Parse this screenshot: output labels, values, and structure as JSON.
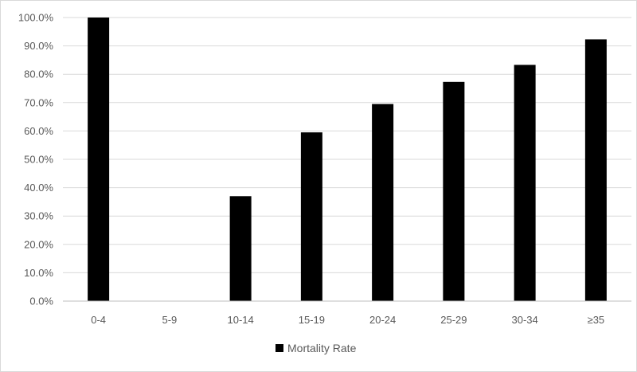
{
  "chart_data": {
    "type": "bar",
    "title": "",
    "xlabel": "",
    "ylabel": "",
    "categories": [
      "0-4",
      "5-9",
      "10-14",
      "15-19",
      "20-24",
      "25-29",
      "30-34",
      "≥35"
    ],
    "series": [
      {
        "name": "Mortality Rate",
        "values": [
          100.0,
          0.0,
          37.0,
          59.5,
          69.5,
          77.3,
          83.3,
          92.3
        ],
        "color": "#000000"
      }
    ],
    "ylim": [
      0,
      100
    ],
    "yticks": [
      "0.0%",
      "10.0%",
      "20.0%",
      "30.0%",
      "40.0%",
      "50.0%",
      "60.0%",
      "70.0%",
      "80.0%",
      "90.0%",
      "100.0%"
    ],
    "grid": true,
    "legend_position": "bottom"
  }
}
